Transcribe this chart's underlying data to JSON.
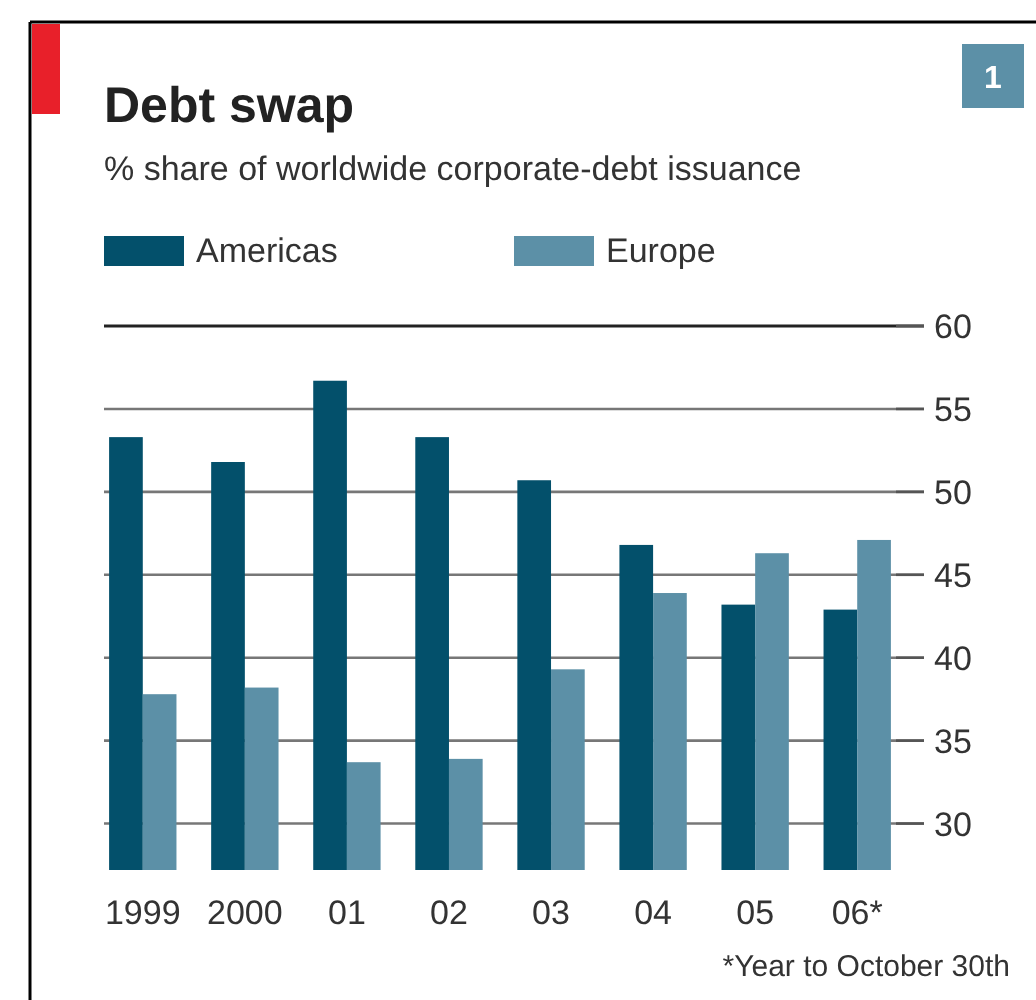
{
  "chart_data": {
    "type": "bar",
    "title": "Debt swap",
    "subtitle": "% share of worldwide corporate-debt issuance",
    "categories": [
      "1999",
      "2000",
      "01",
      "02",
      "03",
      "04",
      "05",
      "06*"
    ],
    "series": [
      {
        "name": "Americas",
        "color": "#03506b",
        "values": [
          53.3,
          51.8,
          56.7,
          53.3,
          50.7,
          46.8,
          43.2,
          42.9
        ]
      },
      {
        "name": "Europe",
        "color": "#5c90a7",
        "values": [
          37.8,
          38.2,
          33.7,
          33.9,
          39.3,
          43.9,
          46.3,
          47.1
        ]
      }
    ],
    "ylim": [
      27.2,
      60
    ],
    "yticks": [
      30,
      35,
      40,
      45,
      50,
      55,
      60
    ],
    "grid": "y",
    "legend": "top left",
    "annotations": [
      "1",
      "*Year to October 30th"
    ]
  }
}
